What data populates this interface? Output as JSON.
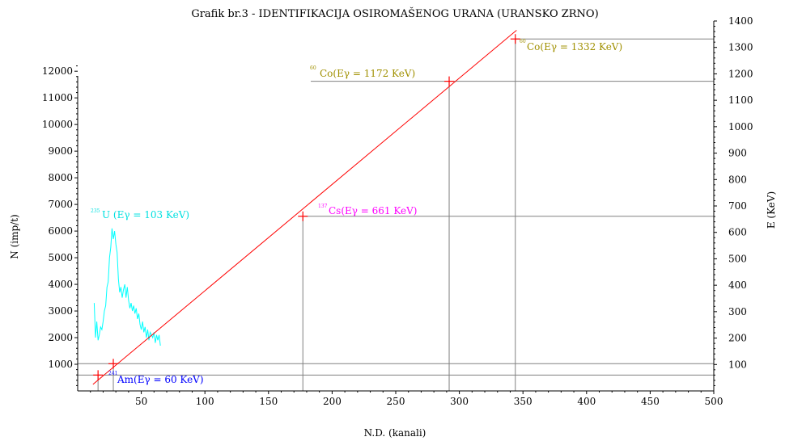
{
  "chart_data": {
    "type": "line",
    "title": "Grafik br.3 - IDENTIFIKACIJA OSIROMAŠENOG URANA (URANSKO ZRNO)",
    "xlabel": "N.D. (kanali)",
    "ylabel_left": "N (imp/t)",
    "ylabel_right": "E (KeV)",
    "xlim": [
      0,
      500
    ],
    "ylim_left": [
      0,
      13400
    ],
    "ylim_right": [
      0,
      1400
    ],
    "x_ticks": [
      50,
      100,
      150,
      200,
      250,
      300,
      350,
      400,
      450,
      500
    ],
    "y_left_ticks": [
      1000,
      2000,
      3000,
      4000,
      5000,
      6000,
      7000,
      8000,
      9000,
      10000,
      11000,
      12000
    ],
    "y_right_ticks": [
      100,
      200,
      300,
      400,
      500,
      600,
      700,
      800,
      900,
      1000,
      1100,
      1200,
      1300,
      1400
    ],
    "grid": false,
    "colors": {
      "calibration": "#ff0000",
      "spectrum": "#00ffff",
      "ref_lines": "#808080",
      "am": "#0000ff",
      "u": "#00e0e0",
      "cs": "#ff00ff",
      "co": "#a09000"
    },
    "series": [
      {
        "axis": "right",
        "x": [
          12,
          345
        ],
        "y": [
          25,
          1365
        ]
      },
      {
        "axis": "left",
        "x": [
          13,
          14,
          15,
          16,
          17,
          18,
          19,
          20,
          21,
          22,
          23,
          24,
          25,
          26,
          27,
          28,
          29,
          30,
          31,
          32,
          33,
          34,
          35,
          36,
          37,
          38,
          39,
          40,
          41,
          42,
          43,
          44,
          45,
          46,
          47,
          48,
          49,
          50,
          51,
          52,
          53,
          54,
          55,
          56,
          57,
          58,
          59,
          60,
          61,
          62,
          63,
          64,
          65
        ],
        "y": [
          3300,
          2000,
          2600,
          1900,
          2100,
          2400,
          2300,
          2600,
          3000,
          3200,
          3900,
          4100,
          5000,
          5400,
          6100,
          5700,
          6000,
          5500,
          5200,
          4200,
          3700,
          3900,
          3500,
          3800,
          4000,
          3500,
          3900,
          3400,
          3100,
          3300,
          3000,
          3200,
          2900,
          3100,
          2700,
          2900,
          2500,
          2300,
          2600,
          2200,
          2400,
          2000,
          2300,
          1900,
          2200,
          2100,
          2000,
          2200,
          1800,
          2100,
          1900,
          2100,
          1700
        ]
      }
    ],
    "markers": [
      {
        "x": 16,
        "e": 60
      },
      {
        "x": 28,
        "e": 103
      },
      {
        "x": 177,
        "e": 661
      },
      {
        "x": 292,
        "e": 1172
      },
      {
        "x": 344,
        "e": 1332
      }
    ],
    "annotations": [
      {
        "key": "am",
        "iso": "241",
        "text": "Am(Eγ = 60 KeV)"
      },
      {
        "key": "u",
        "iso": "235",
        "text": "U (Eγ = 103 KeV)"
      },
      {
        "key": "cs",
        "iso": "137",
        "text": "Cs(Eγ = 661 KeV)"
      },
      {
        "key": "co1",
        "iso": "60",
        "text": "Co(Eγ = 1172 KeV)"
      },
      {
        "key": "co2",
        "iso": "60",
        "text": "Co(Eγ = 1332 KeV)"
      }
    ]
  }
}
